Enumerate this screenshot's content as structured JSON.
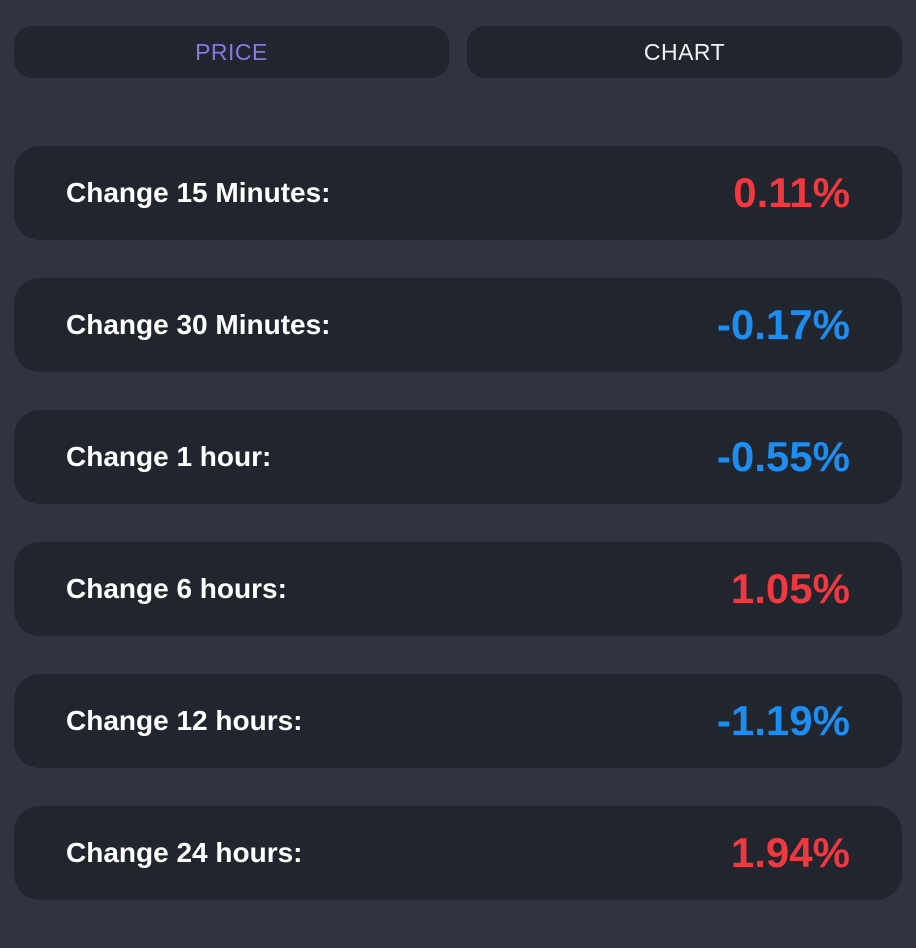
{
  "tabs": [
    {
      "label": "PRICE",
      "active": true
    },
    {
      "label": "CHART",
      "active": false
    }
  ],
  "rows": [
    {
      "label": "Change 15 Minutes:",
      "value": "0.11%",
      "direction": "up"
    },
    {
      "label": "Change 30 Minutes:",
      "value": "-0.17%",
      "direction": "down"
    },
    {
      "label": "Change 1 hour:",
      "value": "-0.55%",
      "direction": "down"
    },
    {
      "label": "Change 6 hours:",
      "value": "1.05%",
      "direction": "up"
    },
    {
      "label": "Change 12 hours:",
      "value": "-1.19%",
      "direction": "down"
    },
    {
      "label": "Change 24 hours:",
      "value": "1.94%",
      "direction": "up"
    }
  ],
  "colors": {
    "page_bg": "#2f3440",
    "card_bg": "#21252e",
    "positive": "#ef3840",
    "negative": "#1d8ef0",
    "active_tab_text": "#837ae5",
    "inactive_tab_text": "#f2f3f5"
  }
}
